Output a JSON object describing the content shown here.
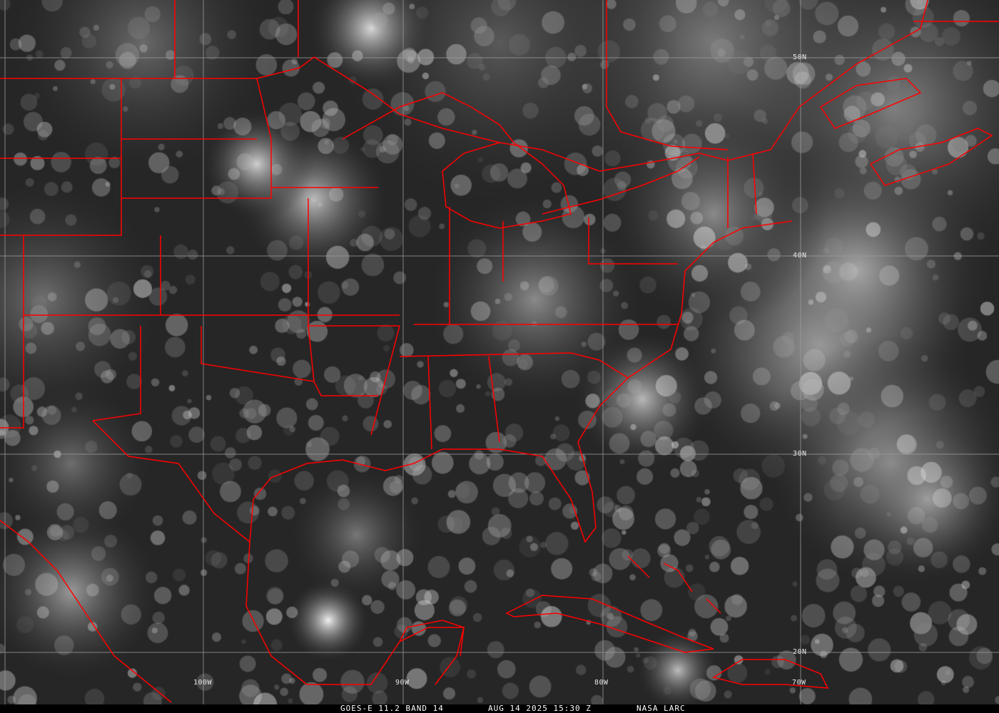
{
  "caption": {
    "satellite_band": "GOES-E 11.2 BAND 14",
    "timestamp": "AUG 14 2025 15:30 Z",
    "credit": "NASA LARC"
  },
  "longitude_labels": [
    "100W",
    "90W",
    "80W",
    "70W"
  ],
  "latitude_labels": [
    "50N",
    "40N",
    "30N",
    "20N"
  ],
  "colors": {
    "borders": "#ff0000",
    "grid": "#9a9a9a",
    "caption_bg": "#000000",
    "caption_text": "#ffffff"
  }
}
